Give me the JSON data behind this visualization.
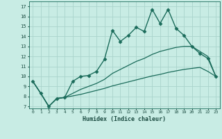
{
  "title": "",
  "xlabel": "Humidex (Indice chaleur)",
  "background_color": "#c8ece4",
  "grid_color": "#aad4cc",
  "line_color": "#1a6b5a",
  "xlim": [
    -0.5,
    23.5
  ],
  "ylim": [
    6.8,
    17.5
  ],
  "xticks": [
    0,
    1,
    2,
    3,
    4,
    5,
    6,
    7,
    8,
    9,
    10,
    11,
    12,
    13,
    14,
    15,
    16,
    17,
    18,
    19,
    20,
    21,
    22,
    23
  ],
  "yticks": [
    7,
    8,
    9,
    10,
    11,
    12,
    13,
    14,
    15,
    16,
    17
  ],
  "series": [
    {
      "x": [
        0,
        1,
        2,
        3,
        4,
        5,
        6,
        7,
        8,
        9,
        10,
        11,
        12,
        13,
        14,
        15,
        16,
        17,
        18,
        19,
        20,
        21,
        22,
        23
      ],
      "y": [
        9.5,
        8.3,
        7.0,
        7.8,
        7.9,
        9.5,
        10.0,
        10.1,
        10.5,
        11.7,
        14.6,
        13.5,
        14.1,
        14.9,
        14.5,
        16.7,
        15.3,
        16.7,
        14.8,
        14.1,
        13.0,
        12.3,
        11.8,
        10.0
      ],
      "marker": "D",
      "markersize": 2.5,
      "linewidth": 1.0
    },
    {
      "x": [
        0,
        1,
        2,
        3,
        4,
        5,
        6,
        7,
        8,
        9,
        10,
        11,
        12,
        13,
        14,
        15,
        16,
        17,
        18,
        19,
        20,
        21,
        22,
        23
      ],
      "y": [
        9.5,
        8.3,
        7.0,
        7.75,
        7.9,
        8.05,
        8.2,
        8.4,
        8.6,
        8.8,
        9.05,
        9.25,
        9.45,
        9.65,
        9.85,
        10.05,
        10.2,
        10.4,
        10.55,
        10.7,
        10.8,
        10.9,
        10.5,
        10.0
      ],
      "marker": null,
      "linewidth": 0.9
    },
    {
      "x": [
        0,
        1,
        2,
        3,
        4,
        5,
        6,
        7,
        8,
        9,
        10,
        11,
        12,
        13,
        14,
        15,
        16,
        17,
        18,
        19,
        20,
        21,
        22,
        23
      ],
      "y": [
        9.5,
        8.3,
        7.0,
        7.8,
        7.9,
        8.3,
        8.7,
        9.0,
        9.3,
        9.7,
        10.3,
        10.7,
        11.1,
        11.5,
        11.8,
        12.2,
        12.5,
        12.7,
        12.9,
        13.0,
        13.0,
        12.5,
        12.0,
        10.0
      ],
      "marker": null,
      "linewidth": 0.9
    }
  ]
}
